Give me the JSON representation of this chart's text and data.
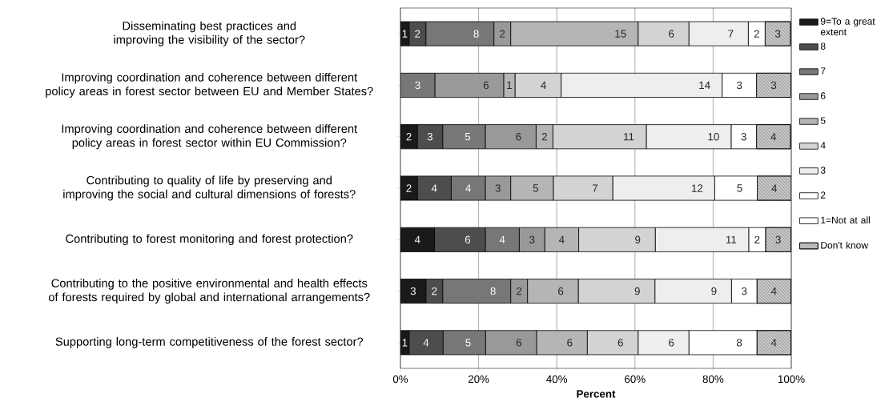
{
  "chart_data": {
    "type": "bar",
    "orientation": "horizontal",
    "stacked": true,
    "xlabel": "Percent",
    "categories": [
      "Disseminating best practices and improving the visibility of the sector?",
      "Improving coordination and coherence between different policy areas in forest sector between EU and Member States?",
      "Improving coordination and coherence between different policy areas in forest sector within EU Commission?",
      "Contributing to quality of life by preserving and improving the social and cultural dimensions of forests?",
      "Contributing to forest monitoring and forest protection?",
      "Contributing to the positive environmental and health effects of forests required by global and international arrangements?",
      "Supporting long-term competitiveness of the forest sector?"
    ],
    "series": [
      {
        "name": "9=To a great extent",
        "color": "#1a1a1a",
        "values": [
          2.2,
          0,
          4.3,
          4.3,
          8.7,
          6.5,
          2.2
        ]
      },
      {
        "name": "8",
        "color": "#4d4d4d",
        "values": [
          4.3,
          0,
          6.5,
          8.7,
          13.0,
          4.3,
          8.7
        ]
      },
      {
        "name": "7",
        "color": "#777777",
        "values": [
          17.4,
          8.8,
          10.9,
          8.7,
          8.7,
          17.4,
          10.9
        ]
      },
      {
        "name": "6",
        "color": "#999999",
        "values": [
          4.3,
          17.6,
          13.0,
          6.5,
          6.5,
          4.3,
          13.0
        ]
      },
      {
        "name": "5",
        "color": "#b5b5b5",
        "values": [
          32.6,
          2.9,
          4.3,
          10.9,
          8.7,
          13.0,
          13.0
        ]
      },
      {
        "name": "4",
        "color": "#d3d3d3",
        "values": [
          13.0,
          11.8,
          23.9,
          15.2,
          19.6,
          19.6,
          13.0
        ]
      },
      {
        "name": "3",
        "color": "#eeeeee",
        "values": [
          15.2,
          41.2,
          21.7,
          26.1,
          23.9,
          19.6,
          13.0
        ]
      },
      {
        "name": "2",
        "color": "#ffffff",
        "values": [
          4.3,
          8.8,
          6.5,
          10.9,
          4.3,
          6.5,
          17.4
        ]
      },
      {
        "name": "1=Not at all",
        "color": "#ffffff",
        "values": [
          0,
          0,
          0,
          0,
          0,
          0,
          0
        ]
      },
      {
        "name": "Don't know",
        "color": "#b0b0b0",
        "values": [
          6.5,
          8.8,
          8.7,
          8.7,
          6.5,
          8.7,
          8.7
        ]
      }
    ],
    "annotations": [
      {
        "text": "1",
        "x": 2.2,
        "y": "Disseminating best practices and improving the visibility of the sector?"
      },
      {
        "text": "2",
        "x": 6.5,
        "y": "Disseminating best practices and improving the visibility of the sector?"
      },
      {
        "text": "8",
        "x": 23.9,
        "y": "Disseminating best practices and improving the visibility of the sector?"
      },
      {
        "text": "2",
        "x": 28.2,
        "y": "Disseminating best practices and improving the visibility of the sector?"
      },
      {
        "text": "15",
        "x": 60.8,
        "y": "Disseminating best practices and improving the visibility of the sector?"
      },
      {
        "text": "6",
        "x": 73.8,
        "y": "Disseminating best practices and improving the visibility of the sector?"
      },
      {
        "text": "7",
        "x": 89.0,
        "y": "Disseminating best practices and improving the visibility of the sector?"
      },
      {
        "text": "2",
        "x": 93.3,
        "y": "Disseminating best practices and improving the visibility of the sector?"
      },
      {
        "text": "3",
        "x": 99.8,
        "y": "Disseminating best practices and improving the visibility of the sector?"
      },
      {
        "text": "3",
        "x": 8.8,
        "y": "Improving coordination and coherence between different policy areas in forest sector between EU and Member States?"
      },
      {
        "text": "6",
        "x": 26.4,
        "y": "Improving coordination and coherence between different policy areas in forest sector between EU and Member States?"
      },
      {
        "text": "1",
        "x": 29.3,
        "y": "Improving coordination and coherence between different policy areas in forest sector between EU and Member States?"
      },
      {
        "text": "4",
        "x": 41.1,
        "y": "Improving coordination and coherence between different policy areas in forest sector between EU and Member States?"
      },
      {
        "text": "14",
        "x": 82.3,
        "y": "Improving coordination and coherence between different policy areas in forest sector between EU and Member States?"
      },
      {
        "text": "3",
        "x": 91.1,
        "y": "Improving coordination and coherence between different policy areas in forest sector between EU and Member States?"
      },
      {
        "text": "3",
        "x": 99.9,
        "y": "Improving coordination and coherence between different policy areas in forest sector between EU and Member States?"
      },
      {
        "text": "2",
        "x": 4.3,
        "y": "Improving coordination and coherence between different policy areas in forest sector within EU Commission?"
      },
      {
        "text": "3",
        "x": 10.8,
        "y": "Improving coordination and coherence between different policy areas in forest sector within EU Commission?"
      },
      {
        "text": "5",
        "x": 21.7,
        "y": "Improving coordination and coherence between different policy areas in forest sector within EU Commission?"
      },
      {
        "text": "6",
        "x": 34.7,
        "y": "Improving coordination and coherence between different policy areas in forest sector within EU Commission?"
      },
      {
        "text": "2",
        "x": 39.0,
        "y": "Improving coordination and coherence between different policy areas in forest sector within EU Commission?"
      },
      {
        "text": "11",
        "x": 62.9,
        "y": "Improving coordination and coherence between different policy areas in forest sector within EU Commission?"
      },
      {
        "text": "10",
        "x": 84.6,
        "y": "Improving coordination and coherence between different policy areas in forest sector within EU Commission?"
      },
      {
        "text": "3",
        "x": 91.1,
        "y": "Improving coordination and coherence between different policy areas in forest sector within EU Commission?"
      },
      {
        "text": "4",
        "x": 99.8,
        "y": "Improving coordination and coherence between different policy areas in forest sector within EU Commission?"
      },
      {
        "text": "2",
        "x": 4.3,
        "y": "Contributing to quality of life by preserving and improving the social and cultural dimensions of forests?"
      },
      {
        "text": "4",
        "x": 13.0,
        "y": "Contributing to quality of life by preserving and improving the social and cultural dimensions of forests?"
      },
      {
        "text": "4",
        "x": 21.7,
        "y": "Contributing to quality of life by preserving and improving the social and cultural dimensions of forests?"
      },
      {
        "text": "3",
        "x": 28.2,
        "y": "Contributing to quality of life by preserving and improving the social and cultural dimensions of forests?"
      },
      {
        "text": "5",
        "x": 39.1,
        "y": "Contributing to quality of life by preserving and improving the social and cultural dimensions of forests?"
      },
      {
        "text": "7",
        "x": 54.3,
        "y": "Contributing to quality of life by preserving and improving the social and cultural dimensions of forests?"
      },
      {
        "text": "12",
        "x": 80.4,
        "y": "Contributing to quality of life by preserving and improving the social and cultural dimensions of forests?"
      },
      {
        "text": "5",
        "x": 91.3,
        "y": "Contributing to quality of life by preserving and improving the social and cultural dimensions of forests?"
      },
      {
        "text": "4",
        "x": 100.0,
        "y": "Contributing to quality of life by preserving and improving the social and cultural dimensions of forests?"
      },
      {
        "text": "4",
        "x": 8.7,
        "y": "Contributing to forest monitoring and forest protection?"
      },
      {
        "text": "6",
        "x": 21.7,
        "y": "Contributing to forest monitoring and forest protection?"
      },
      {
        "text": "4",
        "x": 30.4,
        "y": "Contributing to forest monitoring and forest protection?"
      },
      {
        "text": "3",
        "x": 36.9,
        "y": "Contributing to forest monitoring and forest protection?"
      },
      {
        "text": "4",
        "x": 45.6,
        "y": "Contributing to forest monitoring and forest protection?"
      },
      {
        "text": "9",
        "x": 65.2,
        "y": "Contributing to forest monitoring and forest protection?"
      },
      {
        "text": "11",
        "x": 89.1,
        "y": "Contributing to forest monitoring and forest protection?"
      },
      {
        "text": "2",
        "x": 93.4,
        "y": "Contributing to forest monitoring and forest protection?"
      },
      {
        "text": "3",
        "x": 99.9,
        "y": "Contributing to forest monitoring and forest protection?"
      },
      {
        "text": "3",
        "x": 6.5,
        "y": "Contributing to the positive environmental and health effects of forests required by global and international arrangements?"
      },
      {
        "text": "2",
        "x": 10.8,
        "y": "Contributing to the positive environmental and health effects of forests required by global and international arrangements?"
      },
      {
        "text": "8",
        "x": 28.2,
        "y": "Contributing to the positive environmental and health effects of forests required by global and international arrangements?"
      },
      {
        "text": "2",
        "x": 32.5,
        "y": "Contributing to the positive environmental and health effects of forests required by global and international arrangements?"
      },
      {
        "text": "6",
        "x": 45.5,
        "y": "Contributing to the positive environmental and health effects of forests required by global and international arrangements?"
      },
      {
        "text": "9",
        "x": 65.1,
        "y": "Contributing to the positive environmental and health effects of forests required by global and international arrangements?"
      },
      {
        "text": "9",
        "x": 84.7,
        "y": "Contributing to the positive environmental and health effects of forests required by global and international arrangements?"
      },
      {
        "text": "3",
        "x": 91.2,
        "y": "Contributing to the positive environmental and health effects of forests required by global and international arrangements?"
      },
      {
        "text": "4",
        "x": 99.9,
        "y": "Contributing to the positive environmental and health effects of forests required by global and international arrangements?"
      },
      {
        "text": "1",
        "x": 2.2,
        "y": "Supporting long-term competitiveness of the forest sector?"
      },
      {
        "text": "4",
        "x": 10.9,
        "y": "Supporting long-term competitiveness of the forest sector?"
      },
      {
        "text": "5",
        "x": 21.8,
        "y": "Supporting long-term competitiveness of the forest sector?"
      },
      {
        "text": "6",
        "x": 34.8,
        "y": "Supporting long-term competitiveness of the forest sector?"
      },
      {
        "text": "6",
        "x": 47.8,
        "y": "Supporting long-term competitiveness of the forest sector?"
      },
      {
        "text": "6",
        "x": 60.8,
        "y": "Supporting long-term competitiveness of the forest sector?"
      },
      {
        "text": "6",
        "x": 73.8,
        "y": "Supporting long-term competitiveness of the forest sector?"
      },
      {
        "text": "8",
        "x": 91.2,
        "y": "Supporting long-term competitiveness of the forest sector?"
      },
      {
        "text": "4",
        "x": 99.9,
        "y": "Supporting long-term competitiveness of the forest sector?"
      }
    ],
    "xlim": [
      0,
      100
    ],
    "xticks": [
      {
        "value": 0,
        "label": "0%"
      },
      {
        "value": 20,
        "label": "20%"
      },
      {
        "value": 40,
        "label": "40%"
      },
      {
        "value": 60,
        "label": "60%"
      },
      {
        "value": 80,
        "label": "80%"
      },
      {
        "value": 100,
        "label": "100%"
      }
    ],
    "grid": "x",
    "legend": "right"
  }
}
